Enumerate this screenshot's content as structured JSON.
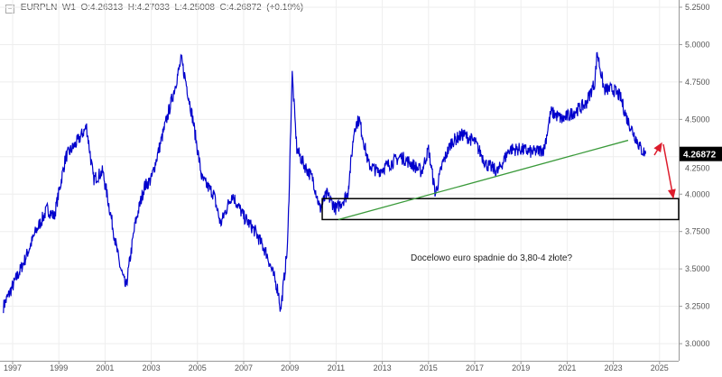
{
  "header": {
    "symbol": "EURPLN",
    "interval": "W1",
    "open": "O:4.26313",
    "high": "H:4.27033",
    "low": "L:4.25008",
    "close": "C:4.26872",
    "change": "(+0.19%)"
  },
  "chart_data": {
    "type": "line",
    "title": "",
    "xlabel": "",
    "ylabel": "",
    "ylim": [
      3.0,
      5.25
    ],
    "xlim": [
      1996.6,
      2026.0
    ],
    "grid": true,
    "x_ticks": [
      "1997",
      "1999",
      "2001",
      "2003",
      "2005",
      "2007",
      "2009",
      "2011",
      "2013",
      "2015",
      "2017",
      "2019",
      "2021",
      "2023",
      "2025"
    ],
    "y_ticks": [
      "3.0000",
      "3.2500",
      "3.5000",
      "3.7500",
      "4.0000",
      "4.2500",
      "4.5000",
      "4.7500",
      "5.0000",
      "5.2500"
    ],
    "last_price_label": "4.26872",
    "series": [
      {
        "color": "#0000cc",
        "x": [
          1996.6,
          1997.5,
          1998.0,
          1998.5,
          1998.8,
          1999.3,
          1999.8,
          2000.2,
          2000.5,
          2000.9,
          2001.2,
          2001.6,
          2001.9,
          2002.3,
          2002.7,
          2003.0,
          2003.5,
          2004.0,
          2004.3,
          2004.5,
          2004.8,
          2005.2,
          2005.7,
          2006.0,
          2006.5,
          2007.0,
          2007.5,
          2008.0,
          2008.5,
          2008.6,
          2008.9,
          2009.1,
          2009.3,
          2009.6,
          2010.0,
          2010.3,
          2010.6,
          2011.0,
          2011.5,
          2011.8,
          2012.0,
          2012.4,
          2012.8,
          2013.3,
          2013.8,
          2014.3,
          2014.7,
          2015.0,
          2015.3,
          2015.6,
          2016.0,
          2016.5,
          2017.0,
          2017.5,
          2018.0,
          2018.5,
          2019.0,
          2019.5,
          2020.0,
          2020.3,
          2020.8,
          2021.3,
          2021.8,
          2022.2,
          2022.3,
          2022.6,
          2023.0,
          2023.3,
          2023.6,
          2023.9,
          2024.2,
          2024.4
        ],
        "y": [
          3.25,
          3.55,
          3.75,
          3.9,
          3.85,
          4.25,
          4.35,
          4.45,
          4.1,
          4.15,
          3.9,
          3.55,
          3.37,
          3.8,
          4.05,
          4.1,
          4.4,
          4.7,
          4.9,
          4.75,
          4.5,
          4.1,
          4.0,
          3.8,
          4.0,
          3.85,
          3.75,
          3.6,
          3.35,
          3.22,
          3.65,
          4.8,
          4.3,
          4.2,
          4.1,
          3.9,
          4.0,
          3.9,
          4.0,
          4.45,
          4.5,
          4.2,
          4.15,
          4.2,
          4.25,
          4.2,
          4.15,
          4.3,
          4.0,
          4.2,
          4.35,
          4.4,
          4.35,
          4.2,
          4.15,
          4.3,
          4.3,
          4.28,
          4.3,
          4.55,
          4.5,
          4.55,
          4.6,
          4.75,
          4.95,
          4.7,
          4.7,
          4.65,
          4.5,
          4.4,
          4.3,
          4.27
        ]
      }
    ],
    "trendline": {
      "color": "#3a9a3a",
      "from": [
        2011.1,
        3.83
      ],
      "to": [
        2023.64,
        4.36
      ]
    },
    "target_zone": {
      "x_from": 2010.4,
      "y_from": 3.83,
      "y_to": 3.97
    },
    "arrows_color": "#dd1c2c",
    "annotation": "Docelowo euro spadnie do 3,80-4 złote?"
  }
}
